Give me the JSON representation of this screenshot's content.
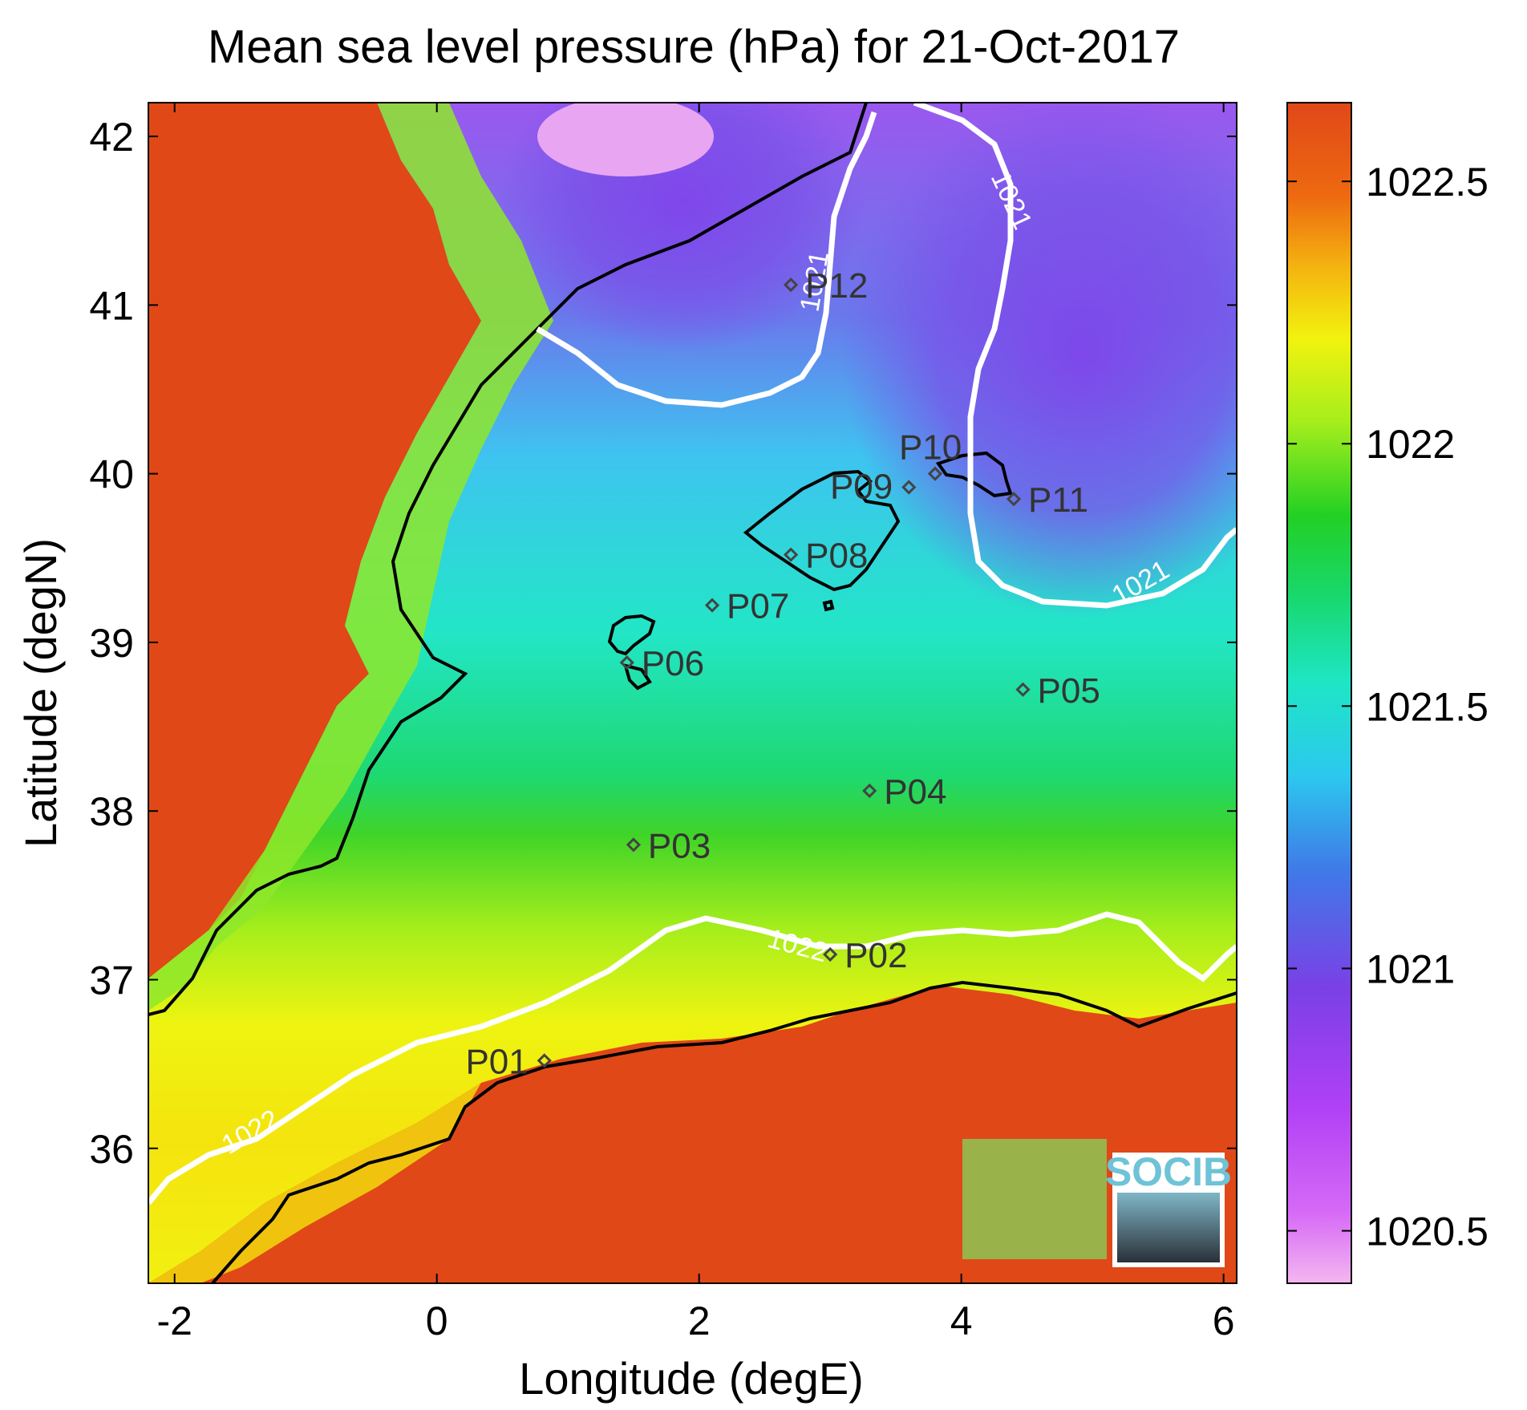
{
  "chart_data": {
    "type": "heatmap",
    "title": "Mean sea level pressure (hPa) for 21-Oct-2017",
    "xlabel": "Longitude (degE)",
    "ylabel": "Latitude (degN)",
    "xlim": [
      -2.2,
      6.1
    ],
    "ylim": [
      35.2,
      42.2
    ],
    "xticks": [
      -2,
      0,
      2,
      4,
      6
    ],
    "yticks": [
      36,
      37,
      38,
      39,
      40,
      41,
      42
    ],
    "colorbar": {
      "min": 1020.4,
      "max": 1022.65,
      "ticks": [
        1020.5,
        1021,
        1021.5,
        1022,
        1022.5
      ],
      "tick_labels": [
        "1020.5",
        "1021",
        "1021.5",
        "1022",
        "1022.5"
      ],
      "colors": [
        "#f4b6f0",
        "#c640f8",
        "#7a3fe6",
        "#3d6fe8",
        "#2fc6ee",
        "#1fe6c0",
        "#18d060",
        "#20d020",
        "#a8f01c",
        "#f4f40e",
        "#f0a010",
        "#e84c10",
        "#e04818"
      ]
    },
    "contours": [
      {
        "level": 1021,
        "label": "1021"
      },
      {
        "level": 1022,
        "label": "1022"
      }
    ],
    "stations": [
      {
        "name": "P01",
        "lon": 0.82,
        "lat": 36.52
      },
      {
        "name": "P02",
        "lon": 3.0,
        "lat": 37.15
      },
      {
        "name": "P03",
        "lon": 1.5,
        "lat": 37.8
      },
      {
        "name": "P04",
        "lon": 3.3,
        "lat": 38.12
      },
      {
        "name": "P05",
        "lon": 4.47,
        "lat": 38.72
      },
      {
        "name": "P06",
        "lon": 1.45,
        "lat": 38.88
      },
      {
        "name": "P07",
        "lon": 2.1,
        "lat": 39.22
      },
      {
        "name": "P08",
        "lon": 2.7,
        "lat": 39.52
      },
      {
        "name": "P09",
        "lon": 3.6,
        "lat": 39.92
      },
      {
        "name": "P10",
        "lon": 3.8,
        "lat": 40.0
      },
      {
        "name": "P11",
        "lon": 4.4,
        "lat": 39.85
      },
      {
        "name": "P12",
        "lon": 2.7,
        "lat": 41.12
      }
    ]
  },
  "logo": {
    "text": "SOCIB"
  }
}
